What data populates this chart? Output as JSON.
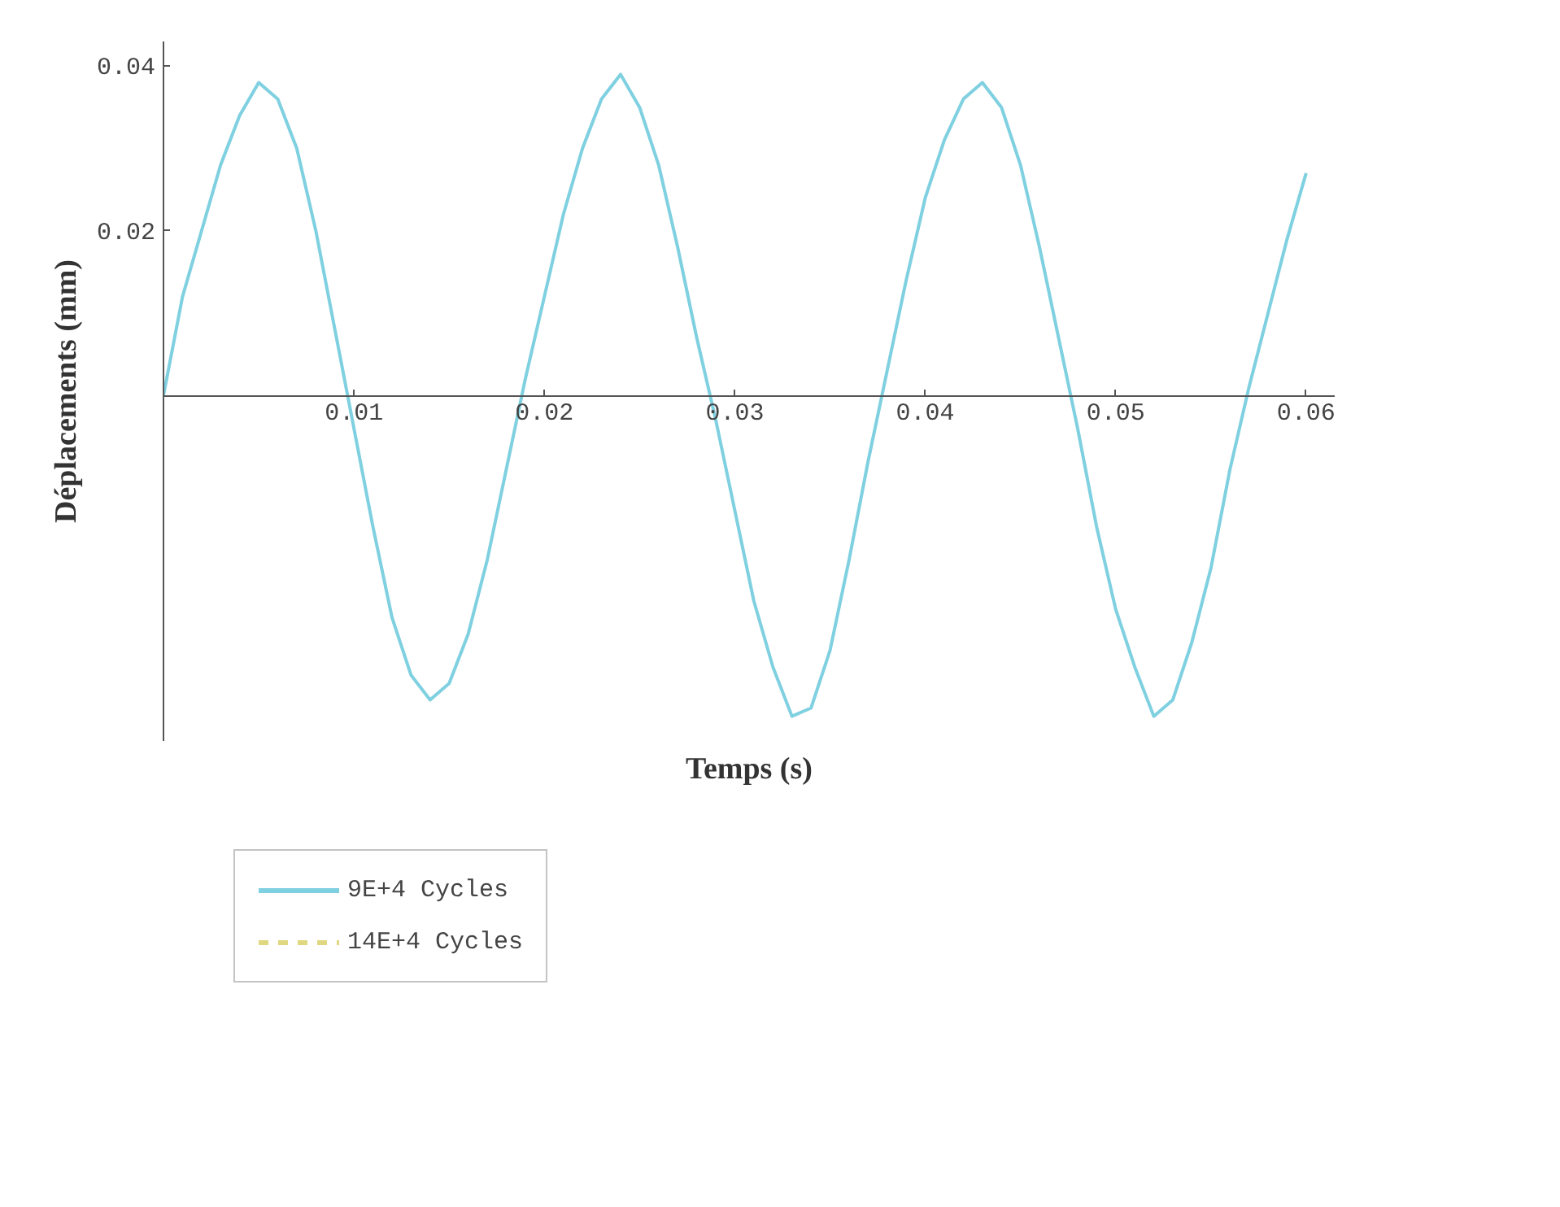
{
  "chart_data": {
    "type": "line",
    "xlabel": "Temps (s)",
    "ylabel": "Déplacements (mm)",
    "x": [
      0,
      0.001,
      0.002,
      0.003,
      0.004,
      0.005,
      0.006,
      0.007,
      0.008,
      0.009,
      0.01,
      0.011,
      0.012,
      0.013,
      0.014,
      0.015,
      0.016,
      0.017,
      0.018,
      0.019,
      0.02,
      0.021,
      0.022,
      0.023,
      0.024,
      0.025,
      0.026,
      0.027,
      0.028,
      0.029,
      0.03,
      0.031,
      0.032,
      0.033,
      0.034,
      0.035,
      0.036,
      0.037,
      0.038,
      0.039,
      0.04,
      0.041,
      0.042,
      0.043,
      0.044,
      0.045,
      0.046,
      0.047,
      0.048,
      0.049,
      0.05,
      0.051,
      0.052,
      0.053,
      0.054,
      0.055,
      0.056,
      0.057,
      0.058,
      0.059,
      0.06
    ],
    "series": [
      {
        "name": "9E+4 Cycles",
        "color": "#7fd0e0",
        "values": [
          0.0,
          0.012,
          0.02,
          0.028,
          0.034,
          0.038,
          0.036,
          0.03,
          0.02,
          0.008,
          -0.004,
          -0.016,
          -0.027,
          -0.034,
          -0.037,
          -0.035,
          -0.029,
          -0.02,
          -0.009,
          0.002,
          0.012,
          0.022,
          0.03,
          0.036,
          0.039,
          0.035,
          0.028,
          0.018,
          0.007,
          -0.003,
          -0.014,
          -0.025,
          -0.033,
          -0.039,
          -0.038,
          -0.031,
          -0.02,
          -0.008,
          0.003,
          0.014,
          0.024,
          0.031,
          0.036,
          0.038,
          0.035,
          0.028,
          0.018,
          0.007,
          -0.004,
          -0.016,
          -0.026,
          -0.033,
          -0.039,
          -0.037,
          -0.03,
          -0.021,
          -0.009,
          0.001,
          0.01,
          0.019,
          0.027
        ]
      },
      {
        "name": "14E+4 Cycles",
        "color": "#e0d880",
        "line_style": "dashed",
        "values": [
          null,
          null,
          null,
          null,
          null,
          null,
          null,
          null,
          null,
          null,
          null,
          null,
          null,
          null,
          null,
          null,
          null,
          null,
          null,
          null,
          null,
          null,
          null,
          null,
          null,
          null,
          null,
          null,
          null,
          null,
          null,
          null,
          null,
          null,
          null,
          null,
          null,
          null,
          null,
          null,
          null,
          null,
          null,
          null,
          null,
          null,
          null,
          null,
          null,
          null,
          null,
          null,
          null,
          null,
          null,
          null,
          null,
          null,
          null,
          null,
          null
        ]
      }
    ],
    "xlim": [
      0,
      0.0615
    ],
    "ylim": [
      -0.042,
      0.043
    ],
    "xticks": [
      0.01,
      0.02,
      0.03,
      0.04,
      0.05,
      0.06
    ],
    "yticks": [
      0.02,
      0.04
    ],
    "grid": false,
    "legend": "bottom left"
  }
}
